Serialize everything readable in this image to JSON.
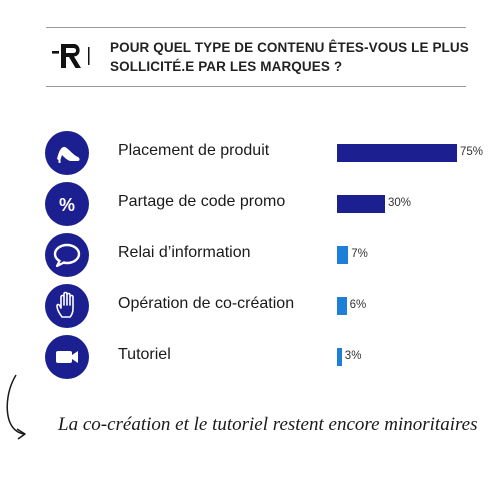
{
  "header": {
    "title": "POUR QUEL TYPE DE CONTENU ÊTES-VOUS LE PLUS SOLLICITÉ.E PAR LES MARQUES ?",
    "logo_icon": "r-logo-icon"
  },
  "chart_data": {
    "type": "bar",
    "orientation": "horizontal",
    "title": "POUR QUEL TYPE DE CONTENU ÊTES-VOUS LE PLUS SOLLICITÉ.E PAR LES MARQUES ?",
    "categories": [
      "Placement de produit",
      "Partage de code promo",
      "Relai d’information",
      "Opération de co-création",
      "Tutoriel"
    ],
    "values": [
      75,
      30,
      7,
      6,
      3
    ],
    "value_labels": [
      "75%",
      "30%",
      "7%",
      "6%",
      "3%"
    ],
    "unit": "%",
    "xlim": [
      0,
      100
    ],
    "icons": [
      "high-heel-icon",
      "percent-icon",
      "speech-bubble-icon",
      "hand-icon",
      "video-camera-icon"
    ],
    "bar_colors": [
      "#1b1f8f",
      "#1b1f8f",
      "#1e7fd8",
      "#1e7fd8",
      "#1e7fd8"
    ],
    "grid": false,
    "legend": "none"
  },
  "colors": {
    "badge": "#1b1f8f",
    "bar_dark": "#1b1f8f",
    "bar_light": "#1e7fd8"
  },
  "footer": {
    "caption": "La co-création et le tutoriel restent encore minoritaires",
    "arrow_icon": "curved-arrow-icon"
  }
}
